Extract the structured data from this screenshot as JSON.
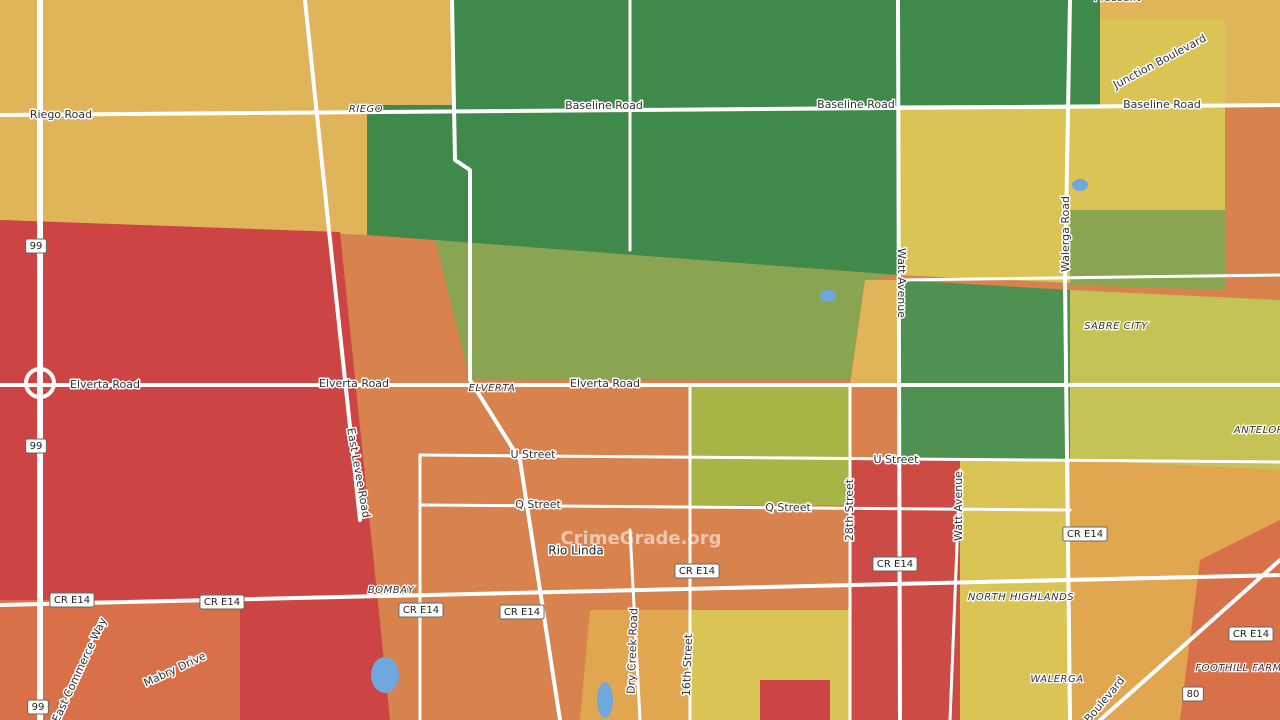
{
  "map": {
    "places": [
      "Pleasant",
      "RIEGO",
      "ELVERTA",
      "SABRE CITY",
      "BOMBAY",
      "NORTH HIGHLANDS",
      "FOOTHILL FARMS",
      "WALERGA",
      "ANTELOPE"
    ],
    "town": "Rio Linda",
    "roads": [
      "Riego Road",
      "Baseline Road",
      "Baseline Road",
      "Baseline Road",
      "Junction Boulevard",
      "Watt Avenue",
      "Walerga Road",
      "Elverta Road",
      "Elverta Road",
      "Elverta Road",
      "U Street",
      "U Street",
      "Q Street",
      "Q Street",
      "28th Street",
      "Watt Avenue",
      "East Levee Road",
      "East Commerce Way",
      "Mabry Drive",
      "Dry Creek Road",
      "16th Street",
      "Boulevard"
    ],
    "shields": [
      "99",
      "99",
      "99",
      "CR E14",
      "CR E14",
      "CR E14",
      "CR E14",
      "CR E14",
      "CR E14",
      "CR E14",
      "CR E14",
      "80"
    ],
    "watermark": "CrimeGrade.org"
  }
}
